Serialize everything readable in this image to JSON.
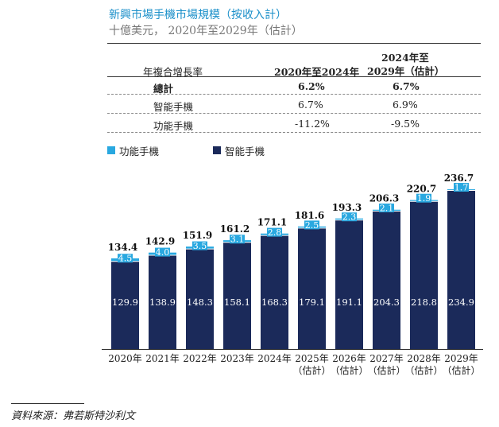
{
  "title": "新興市場手機市場規模（按收入計）",
  "subtitle": "十億美元， 2020年至2029年（估計）",
  "table": {
    "headers": [
      "年複合增長率",
      "2020年至2024年",
      "2024年至",
      "2029年（估計）"
    ],
    "rows": [
      {
        "label": "總計",
        "c1": "6.2%",
        "c2": "6.7%"
      },
      {
        "label": "智能手機",
        "c1": "6.7%",
        "c2": "6.9%"
      },
      {
        "label": "功能手機",
        "c1": "-11.2%",
        "c2": "-9.5%"
      }
    ]
  },
  "legend": {
    "feature": "功能手機",
    "smart": "智能手機"
  },
  "colors": {
    "feature": "#29a8e0",
    "smart": "#1b2a5a",
    "title": "#1a8fc9"
  },
  "source": "資料來源：弗若斯特沙利文",
  "chart_data": {
    "type": "bar",
    "stacked": true,
    "categories": [
      "2020年",
      "2021年",
      "2022年",
      "2023年",
      "2024年",
      "2025年",
      "2026年",
      "2027年",
      "2028年",
      "2029年"
    ],
    "category_sublabels": [
      "",
      "",
      "",
      "",
      "",
      "（估計）",
      "（估計）",
      "（估計）",
      "（估計）",
      "（估計）"
    ],
    "series": [
      {
        "name": "智能手機",
        "values": [
          129.9,
          138.9,
          148.3,
          158.1,
          168.3,
          179.1,
          191.1,
          204.3,
          218.8,
          234.9
        ]
      },
      {
        "name": "功能手機",
        "values": [
          4.5,
          4.0,
          3.5,
          3.1,
          2.8,
          2.5,
          2.3,
          2.1,
          1.9,
          1.7
        ]
      }
    ],
    "value_labels_smart": [
      "129.9",
      "138.9",
      "148.3",
      "158.1",
      "168.3",
      "179.1",
      "191.1",
      "204.3",
      "218.8",
      "234.9"
    ],
    "value_labels_feature": [
      "4.5",
      "4.0",
      "3.5",
      "3.1",
      "2.8",
      "2.5",
      "2.3",
      "2.1",
      "1.9",
      "1.7"
    ],
    "totals": [
      "134.4",
      "142.9",
      "151.9",
      "161.2",
      "171.1",
      "181.6",
      "193.3",
      "206.3",
      "220.7",
      "236.7"
    ],
    "ylim": [
      0,
      236.7
    ]
  }
}
